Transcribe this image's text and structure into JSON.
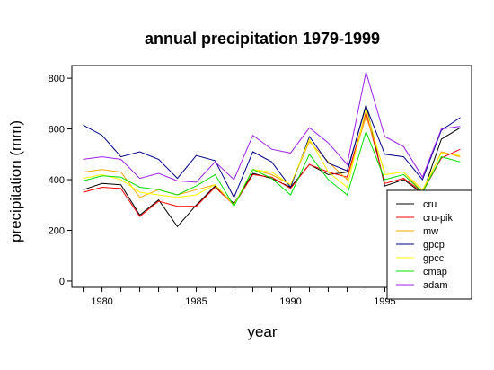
{
  "chart_data": {
    "type": "line",
    "title": "annual precipitation 1979-1999",
    "xlabel": "year",
    "ylabel": "precipitation (mm)",
    "x": [
      1979,
      1980,
      1981,
      1982,
      1983,
      1984,
      1985,
      1986,
      1987,
      1988,
      1989,
      1990,
      1991,
      1992,
      1993,
      1994,
      1995,
      1996,
      1997,
      1998,
      1999
    ],
    "xlim": [
      1978.4,
      1999.6
    ],
    "ylim": [
      -25,
      850
    ],
    "xticks": [
      1980,
      1985,
      1990,
      1995
    ],
    "yticks": [
      0,
      200,
      400,
      600,
      800
    ],
    "legend_position": "bottom-right",
    "series": [
      {
        "name": "cru",
        "color": "#000000",
        "values": [
          360,
          385,
          380,
          260,
          320,
          215,
          300,
          375,
          305,
          425,
          405,
          370,
          460,
          420,
          430,
          695,
          375,
          400,
          345,
          560,
          605
        ]
      },
      {
        "name": "cru-pik",
        "color": "#ff0000",
        "values": [
          350,
          370,
          365,
          255,
          315,
          295,
          295,
          370,
          300,
          420,
          410,
          365,
          460,
          430,
          410,
          665,
          385,
          405,
          350,
          485,
          520
        ]
      },
      {
        "name": "mw",
        "color": "#ffa500",
        "values": [
          430,
          440,
          430,
          330,
          360,
          340,
          360,
          380,
          300,
          440,
          420,
          380,
          550,
          470,
          400,
          650,
          430,
          430,
          350,
          510,
          490
        ]
      },
      {
        "name": "gpcp",
        "color": "#00008b",
        "values": [
          615,
          575,
          490,
          510,
          480,
          405,
          495,
          475,
          330,
          510,
          470,
          370,
          570,
          465,
          435,
          690,
          500,
          490,
          400,
          595,
          645
        ]
      },
      {
        "name": "gpcc",
        "color": "#ffff00",
        "values": [
          405,
          420,
          400,
          350,
          340,
          330,
          340,
          380,
          300,
          440,
          430,
          380,
          560,
          430,
          370,
          680,
          420,
          430,
          360,
          505,
          495
        ]
      },
      {
        "name": "cmap",
        "color": "#00e000",
        "values": [
          395,
          415,
          410,
          370,
          360,
          340,
          375,
          420,
          295,
          440,
          405,
          340,
          500,
          400,
          340,
          590,
          400,
          420,
          350,
          490,
          470
        ]
      },
      {
        "name": "adam",
        "color": "#a020f0",
        "values": [
          480,
          490,
          480,
          405,
          425,
          395,
          390,
          470,
          400,
          575,
          520,
          505,
          605,
          545,
          460,
          825,
          570,
          530,
          410,
          600,
          610
        ]
      }
    ]
  }
}
